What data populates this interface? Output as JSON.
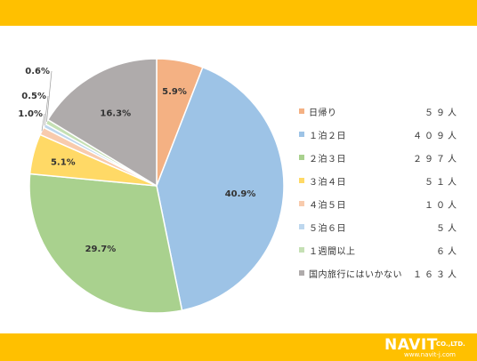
{
  "theme": {
    "band_color": "#ffc000",
    "text_color": "#333333"
  },
  "chart_data": {
    "type": "pie",
    "start_angle_deg": 0,
    "direction": "clockwise",
    "legend_position": "right",
    "slices": [
      {
        "name": "日帰り",
        "percent": 5.9,
        "percent_label": "5.9%",
        "count_label": "５９人",
        "color": "#f4b183"
      },
      {
        "name": "１泊２日",
        "percent": 40.9,
        "percent_label": "40.9%",
        "count_label": "４０９人",
        "color": "#9dc3e6"
      },
      {
        "name": "２泊３日",
        "percent": 29.7,
        "percent_label": "29.7%",
        "count_label": "２９７人",
        "color": "#a9d18e"
      },
      {
        "name": "３泊４日",
        "percent": 5.1,
        "percent_label": "5.1%",
        "count_label": "５１人",
        "color": "#ffd966"
      },
      {
        "name": "４泊５日",
        "percent": 1.0,
        "percent_label": "1.0%",
        "count_label": "１０人",
        "color": "#f8cbad"
      },
      {
        "name": "５泊６日",
        "percent": 0.5,
        "percent_label": "0.5%",
        "count_label": "５人",
        "color": "#bdd7ee"
      },
      {
        "name": "１週間以上",
        "percent": 0.6,
        "percent_label": "0.6%",
        "count_label": "６人",
        "color": "#c5e0b4"
      },
      {
        "name": "国内旅行にはいかない",
        "percent": 16.3,
        "percent_label": "16.3%",
        "count_label": "１６３人",
        "color": "#afabab"
      }
    ]
  },
  "logo": {
    "brand": "NAVIT",
    "suffix": "CO.,LTD.",
    "url": "www.navit-j.com"
  }
}
